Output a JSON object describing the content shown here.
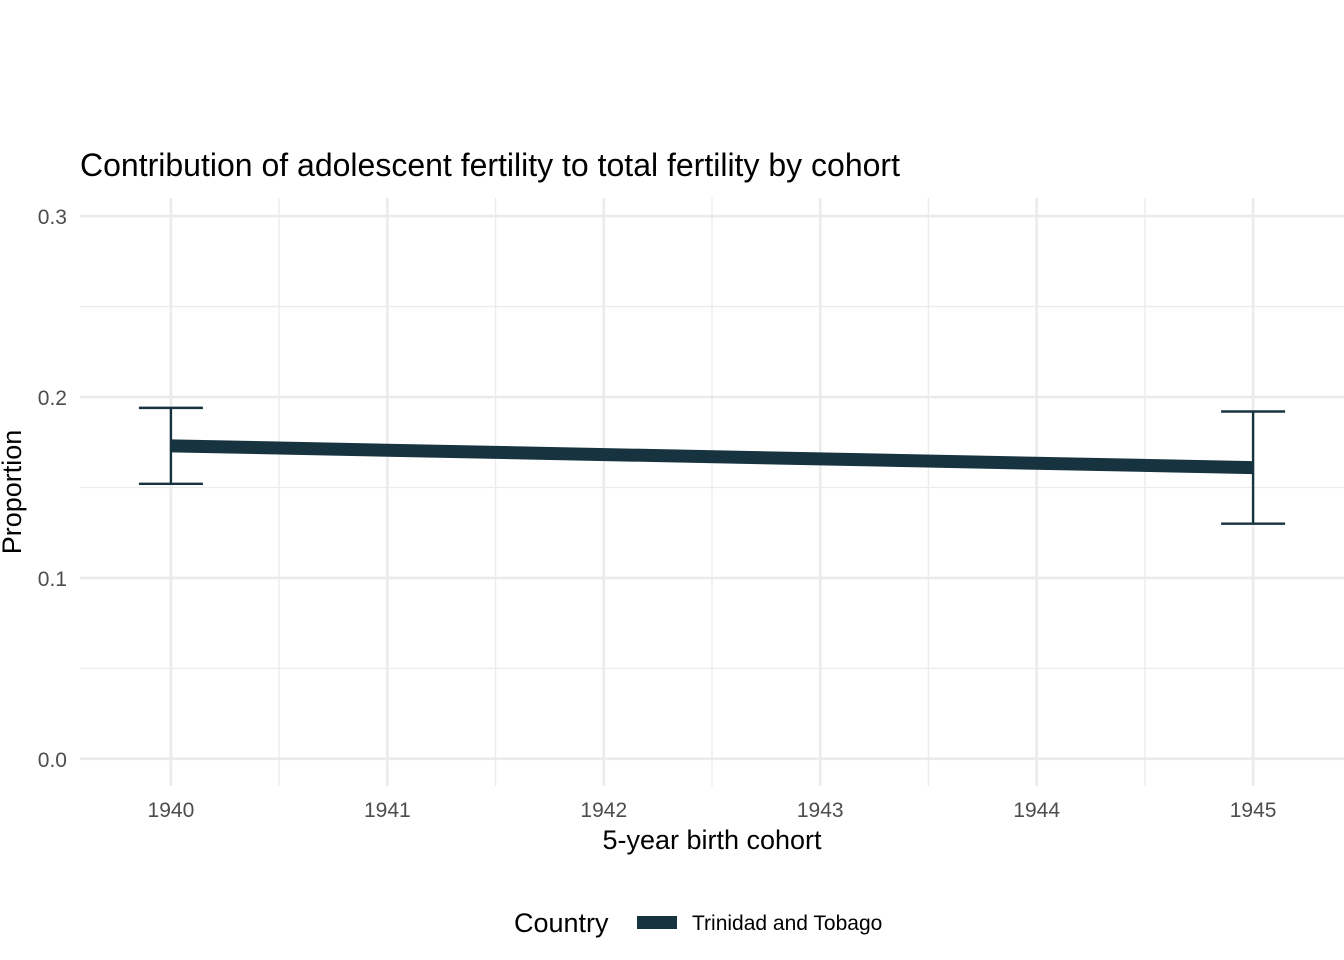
{
  "chart_data": {
    "type": "line",
    "title": "Contribution of adolescent fertility to total fertility by cohort",
    "xlabel": "5-year birth cohort",
    "ylabel": "Proportion",
    "x_ticks": [
      "1940",
      "1941",
      "1942",
      "1943",
      "1944",
      "1945"
    ],
    "y_ticks": [
      "0.0",
      "0.1",
      "0.2",
      "0.3"
    ],
    "xlim": [
      1939.58,
      1945.42
    ],
    "ylim": [
      -0.015,
      0.31
    ],
    "grid": true,
    "legend": {
      "title": "Country",
      "position": "bottom"
    },
    "series": [
      {
        "name": "Trinidad and Tobago",
        "color": "#17333f",
        "x": [
          1940,
          1945
        ],
        "y": [
          0.173,
          0.161
        ],
        "error_low": [
          0.152,
          0.13
        ],
        "error_high": [
          0.194,
          0.192
        ]
      }
    ]
  }
}
